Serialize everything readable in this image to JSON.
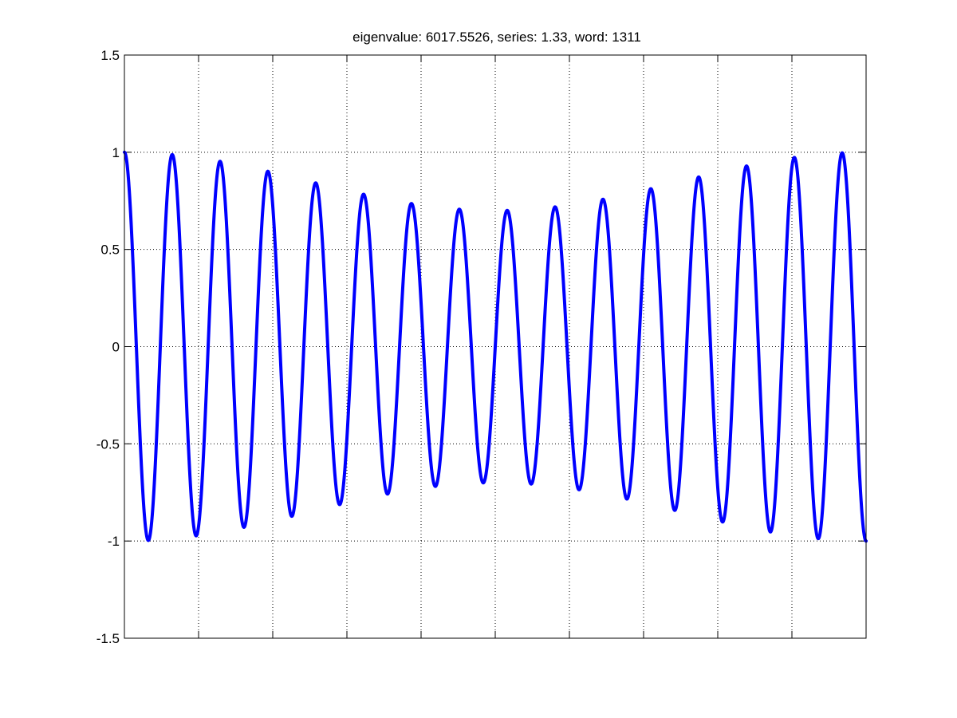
{
  "chart_data": {
    "type": "line",
    "title": "eigenvalue: 6017.5526, series: 1.33, word: 1311",
    "xlabel": "",
    "ylabel": "",
    "xlim": [
      0,
      1
    ],
    "ylim": [
      -1.5,
      1.5
    ],
    "y_ticks": [
      1.5,
      1,
      0.5,
      0,
      -0.5,
      -1,
      -1.5
    ],
    "y_tick_labels": [
      "1.5",
      "1",
      "0.5",
      "0",
      "-0.5",
      "-1",
      "-1.5"
    ],
    "x_ticks": [
      0,
      0.1,
      0.2,
      0.3,
      0.4,
      0.5,
      0.6,
      0.7,
      0.8,
      0.9,
      1.0
    ],
    "x_tick_labels_shown": false,
    "grid": true,
    "grid_style": "dotted",
    "series": [
      {
        "color": "#0000ff",
        "cycles": 15.5,
        "envelope_edge": 1.0,
        "envelope_center": 0.7,
        "y0": 1.0,
        "y_end": -1.0,
        "peaks": [
          1.0,
          1.0,
          0.97,
          0.91,
          0.85,
          0.79,
          0.74,
          0.71,
          0.71,
          0.74,
          0.79,
          0.85,
          0.91,
          0.97,
          1.0,
          1.0
        ],
        "troughs": [
          -1.0,
          -0.99,
          -0.96,
          -0.9,
          -0.85,
          -0.78,
          -0.73,
          -0.7,
          -0.7,
          -0.74,
          -0.78,
          -0.85,
          -0.9,
          -0.96,
          -1.0,
          -1.0
        ]
      }
    ]
  }
}
